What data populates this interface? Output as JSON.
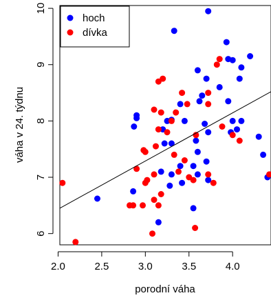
{
  "chart_data": {
    "type": "scatter",
    "xlabel": "porodní váha",
    "ylabel": "váha v 24. týdnu",
    "xlim": [
      2.02,
      4.44
    ],
    "ylim": [
      5.8,
      10.05
    ],
    "xticks": [
      2.0,
      2.5,
      3.0,
      3.5,
      4.0
    ],
    "xtick_labels": [
      "2.0",
      "2.5",
      "3.0",
      "3.5",
      "4.0"
    ],
    "yticks": [
      6,
      7,
      8,
      9,
      10
    ],
    "ytick_labels": [
      "6",
      "7",
      "8",
      "9",
      "10"
    ],
    "legend_position": "top-left",
    "grid": false,
    "series": [
      {
        "name": "hoch",
        "color": "#0000ff",
        "points": [
          [
            3.72,
            9.95
          ],
          [
            3.33,
            9.6
          ],
          [
            3.93,
            9.4
          ],
          [
            4.2,
            9.15
          ],
          [
            3.95,
            9.1
          ],
          [
            4.0,
            9.08
          ],
          [
            3.6,
            8.9
          ],
          [
            4.1,
            8.95
          ],
          [
            3.85,
            8.6
          ],
          [
            4.08,
            8.75
          ],
          [
            3.7,
            8.75
          ],
          [
            3.65,
            8.45
          ],
          [
            3.62,
            8.35
          ],
          [
            3.4,
            8.3
          ],
          [
            3.95,
            8.35
          ],
          [
            3.25,
            8.0
          ],
          [
            3.3,
            8.02
          ],
          [
            3.45,
            8.0
          ],
          [
            2.9,
            8.1
          ],
          [
            2.9,
            8.05
          ],
          [
            2.87,
            7.9
          ],
          [
            3.2,
            7.85
          ],
          [
            4.0,
            8.0
          ],
          [
            4.1,
            8.0
          ],
          [
            3.68,
            7.95
          ],
          [
            4.05,
            7.85
          ],
          [
            3.98,
            7.8
          ],
          [
            3.72,
            7.8
          ],
          [
            3.58,
            7.65
          ],
          [
            3.22,
            7.6
          ],
          [
            3.3,
            7.6
          ],
          [
            3.6,
            7.45
          ],
          [
            4.3,
            7.72
          ],
          [
            3.7,
            7.28
          ],
          [
            4.35,
            7.4
          ],
          [
            3.4,
            7.2
          ],
          [
            3.55,
            7.2
          ],
          [
            3.18,
            7.1
          ],
          [
            3.6,
            7.05
          ],
          [
            3.3,
            7.05
          ],
          [
            4.4,
            7.0
          ],
          [
            3.72,
            6.95
          ],
          [
            3.28,
            6.85
          ],
          [
            2.86,
            6.75
          ],
          [
            3.42,
            6.9
          ],
          [
            2.45,
            6.62
          ],
          [
            3.55,
            6.45
          ],
          [
            3.15,
            6.2
          ]
        ]
      },
      {
        "name": "dívka",
        "color": "#ff0000",
        "points": [
          [
            3.85,
            9.1
          ],
          [
            3.82,
            9.0
          ],
          [
            3.15,
            8.7
          ],
          [
            3.2,
            8.75
          ],
          [
            3.42,
            8.5
          ],
          [
            3.72,
            8.5
          ],
          [
            3.1,
            8.2
          ],
          [
            3.48,
            8.3
          ],
          [
            3.72,
            8.3
          ],
          [
            3.18,
            8.15
          ],
          [
            3.35,
            8.15
          ],
          [
            3.3,
            8.0
          ],
          [
            3.15,
            7.85
          ],
          [
            3.88,
            7.9
          ],
          [
            3.58,
            7.75
          ],
          [
            4.0,
            7.75
          ],
          [
            3.25,
            7.8
          ],
          [
            3.12,
            7.55
          ],
          [
            4.08,
            7.65
          ],
          [
            2.98,
            7.48
          ],
          [
            3.0,
            7.45
          ],
          [
            3.33,
            7.4
          ],
          [
            3.45,
            7.3
          ],
          [
            2.9,
            7.15
          ],
          [
            3.38,
            7.1
          ],
          [
            3.5,
            7.0
          ],
          [
            3.72,
            7.05
          ],
          [
            3.1,
            7.05
          ],
          [
            3.02,
            6.95
          ],
          [
            3.55,
            6.95
          ],
          [
            3.0,
            6.9
          ],
          [
            4.42,
            7.05
          ],
          [
            3.78,
            6.9
          ],
          [
            2.05,
            6.9
          ],
          [
            3.18,
            6.7
          ],
          [
            3.1,
            6.6
          ],
          [
            2.82,
            6.5
          ],
          [
            2.86,
            6.5
          ],
          [
            2.97,
            6.5
          ],
          [
            3.15,
            6.5
          ],
          [
            3.57,
            6.1
          ],
          [
            3.08,
            6.0
          ],
          [
            2.2,
            5.85
          ]
        ]
      }
    ],
    "regression_line": {
      "x": [
        2.02,
        4.44
      ],
      "y": [
        6.45,
        8.52
      ]
    }
  }
}
